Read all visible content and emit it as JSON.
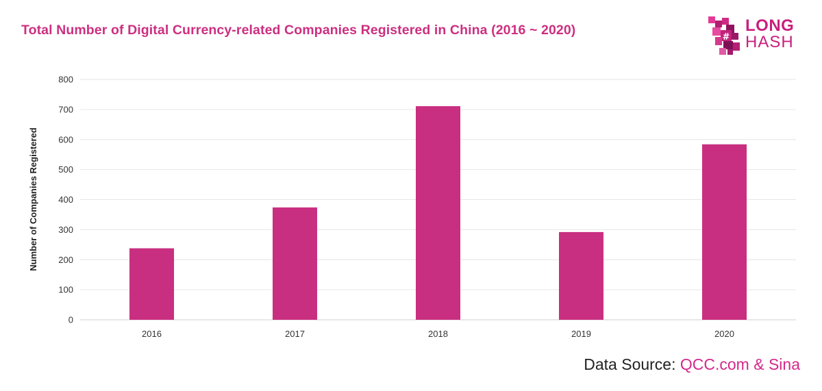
{
  "title": "Total Number of Digital Currency-related Companies Registered in China  (2016 ~ 2020)",
  "logo": {
    "line1": "LONG",
    "line2": "HASH",
    "icon": "dragon-hash-icon"
  },
  "source": {
    "label": "Data Source:",
    "link_text": "QCC.com & Sina"
  },
  "colors": {
    "bar": "#c92f80",
    "title": "#cc2f80",
    "grid": "#e6e6e6",
    "axis_text": "#333333"
  },
  "chart_data": {
    "type": "bar",
    "categories": [
      "2016",
      "2017",
      "2018",
      "2019",
      "2020"
    ],
    "values": [
      238,
      374,
      711,
      292,
      584
    ],
    "title": "Total Number of Digital Currency-related Companies Registered in China  (2016 ~ 2020)",
    "xlabel": "",
    "ylabel": "Number of Companies Registered",
    "ylim": [
      0,
      800
    ],
    "yticks": [
      0,
      100,
      200,
      300,
      400,
      500,
      600,
      700,
      800
    ],
    "grid": true,
    "legend": "none"
  }
}
